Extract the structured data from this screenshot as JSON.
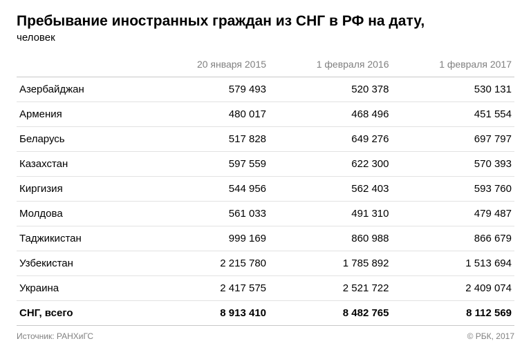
{
  "title": "Пребывание иностранных граждан из СНГ в РФ на дату,",
  "subtitle": "человек",
  "columns": [
    "",
    "20 января 2015",
    "1 февраля 2016",
    "1 февраля 2017"
  ],
  "rows": [
    {
      "country": "Азербайджан",
      "v1": "579 493",
      "v2": "520 378",
      "v3": "530 131"
    },
    {
      "country": "Армения",
      "v1": "480 017",
      "v2": "468 496",
      "v3": "451 554"
    },
    {
      "country": "Беларусь",
      "v1": "517 828",
      "v2": "649 276",
      "v3": "697 797"
    },
    {
      "country": "Казахстан",
      "v1": "597 559",
      "v2": "622 300",
      "v3": "570 393"
    },
    {
      "country": "Киргизия",
      "v1": "544 956",
      "v2": "562 403",
      "v3": "593 760"
    },
    {
      "country": "Молдова",
      "v1": "561 033",
      "v2": "491 310",
      "v3": "479 487"
    },
    {
      "country": "Таджикистан",
      "v1": "999 169",
      "v2": "860 988",
      "v3": "866 679"
    },
    {
      "country": "Узбекистан",
      "v1": "2 215 780",
      "v2": "1 785 892",
      "v3": "1 513 694"
    },
    {
      "country": "Украина",
      "v1": "2 417 575",
      "v2": "2 521 722",
      "v3": "2 409 074"
    }
  ],
  "total": {
    "label": "СНГ, всего",
    "v1": "8 913 410",
    "v2": "8 482 765",
    "v3": "8 112 569"
  },
  "source": "Источник: РАНХиГС",
  "copyright": "© РБК, 2017",
  "style": {
    "title_fontsize": 21,
    "body_fontsize": 15,
    "header_color": "#808080",
    "text_color": "#000000",
    "row_border_color": "#e2e2e2",
    "heavy_border_color": "#c8c8c8",
    "footer_color": "#808080",
    "background_color": "#ffffff"
  }
}
